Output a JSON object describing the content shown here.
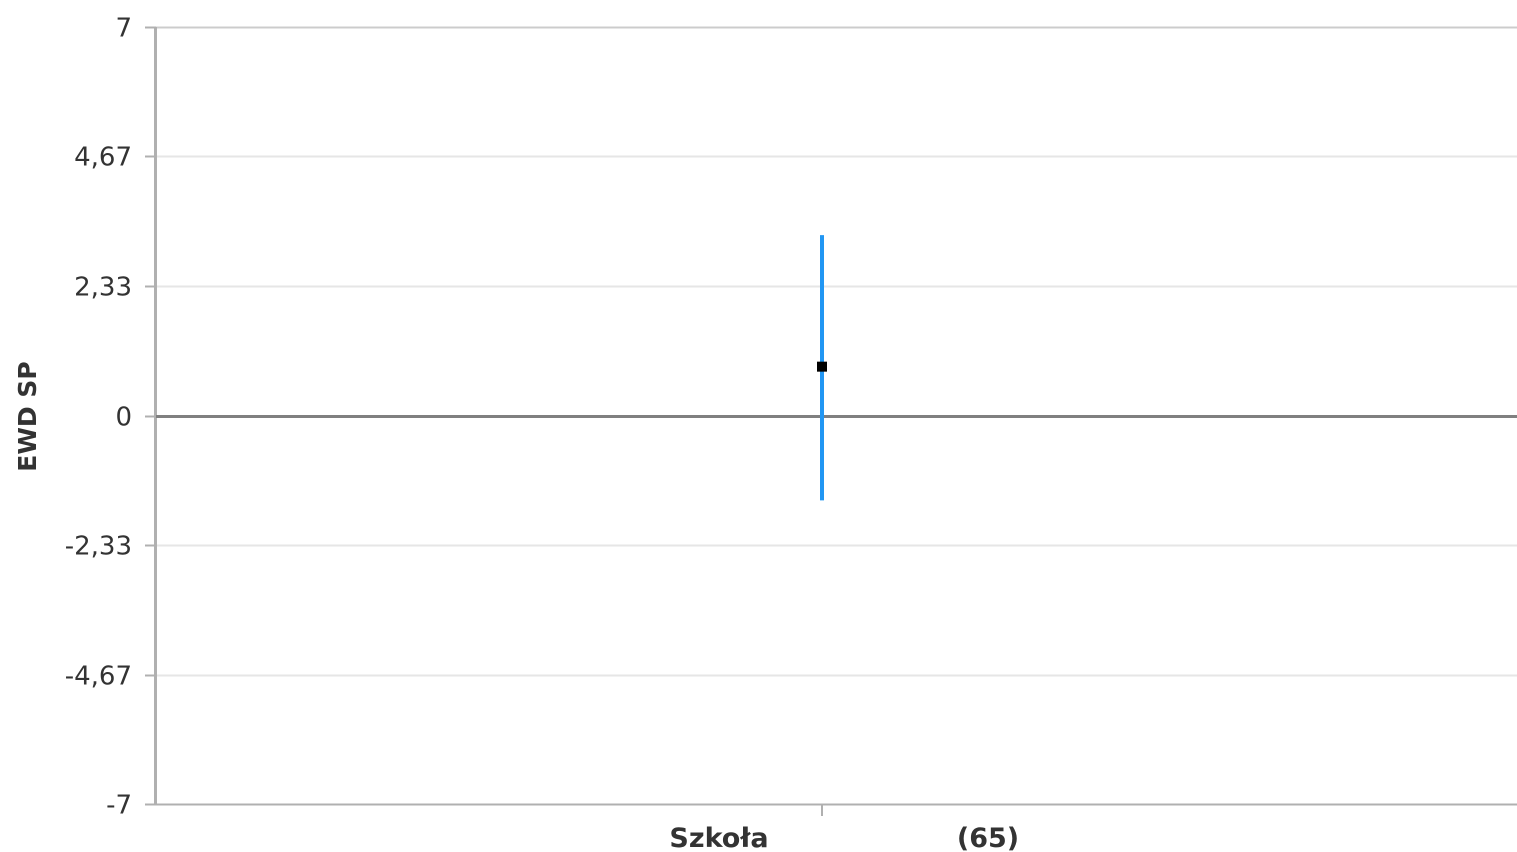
{
  "chart_data": {
    "type": "errorbar",
    "ylabel": "EWD SP",
    "ylim": [
      -7,
      7
    ],
    "yticks": [
      7,
      4.67,
      2.33,
      0,
      -2.33,
      -4.67,
      -7
    ],
    "ytick_labels": [
      "7",
      "4,67",
      "2,33",
      "0",
      "-2,33",
      "-4,67",
      "-7"
    ],
    "categories": [
      {
        "name": "Szkoła",
        "count_label": "(65)",
        "value": 0.88,
        "lower": -1.53,
        "upper": 3.25
      }
    ],
    "colors": {
      "error_bar": "#2196F3",
      "point": "#000000",
      "zero_line": "#808080",
      "grid": "#e6e6e6",
      "axis": "#b0b0b0"
    },
    "grid": true
  }
}
